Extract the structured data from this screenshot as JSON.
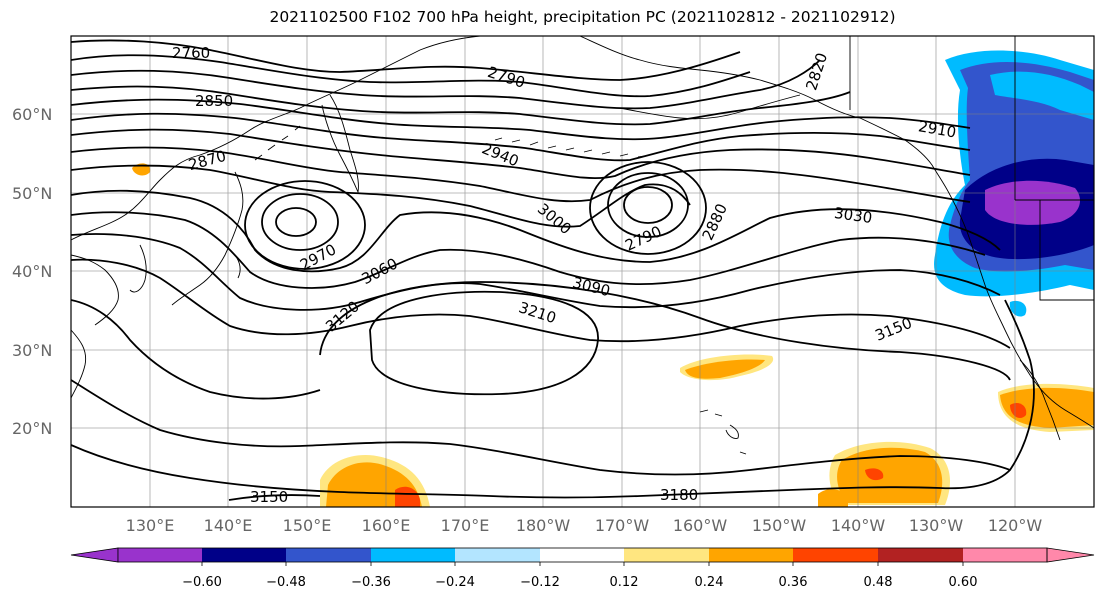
{
  "title": "2021102500 F102 700 hPa height, precipitation PC (2021102812 - 2021102912)",
  "latitude_labels": [
    "60°N",
    "50°N",
    "40°N",
    "30°N",
    "20°N"
  ],
  "longitude_labels": [
    "130°E",
    "140°E",
    "150°E",
    "160°E",
    "170°E",
    "180°W",
    "170°W",
    "160°W",
    "150°W",
    "140°W",
    "130°W",
    "120°W"
  ],
  "contour_labels": [
    "2760",
    "2790",
    "2820",
    "2850",
    "2870",
    "2910",
    "2940",
    "2970",
    "3000",
    "2790",
    "2880",
    "3030",
    "3060",
    "3090",
    "3120",
    "3150",
    "3210",
    "3150",
    "3180"
  ],
  "colorbar": {
    "tick_labels": [
      "−0.60",
      "−0.48",
      "−0.36",
      "−0.24",
      "−0.12",
      "0.12",
      "0.24",
      "0.36",
      "0.48",
      "0.60"
    ],
    "colors": [
      "#9933cc",
      "#000088",
      "#3355cc",
      "#00bbff",
      "#b3e5ff",
      "#ffffff",
      "#ffe680",
      "#ffa500",
      "#ff4400",
      "#b22222",
      "#ff88aa"
    ]
  }
}
